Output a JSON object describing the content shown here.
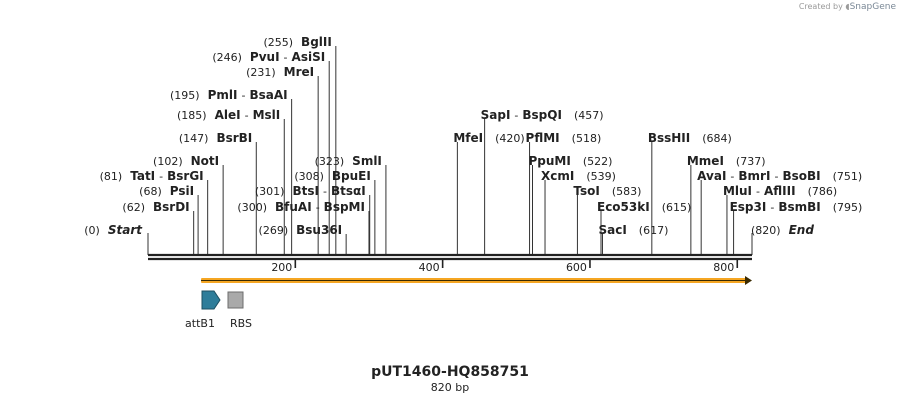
{
  "credit": {
    "prefix": "Created by",
    "brand": "SnapGene"
  },
  "sequence": {
    "name": "pUT1460-HQ858751",
    "length_label": "820 bp",
    "length": 820
  },
  "ruler": {
    "ticks": [
      200,
      400,
      600,
      800
    ]
  },
  "endpoints": [
    {
      "pos": 0,
      "pos_label": "(0)",
      "name": "Start"
    },
    {
      "pos": 820,
      "pos_label": "(820)",
      "name": "End"
    }
  ],
  "sites": [
    {
      "pos": 62,
      "pos_label": "(62)",
      "names": [
        "BsrDI"
      ]
    },
    {
      "pos": 68,
      "pos_label": "(68)",
      "names": [
        "PsiI"
      ]
    },
    {
      "pos": 81,
      "pos_label": "(81)",
      "names": [
        "TatI",
        "BsrGI"
      ]
    },
    {
      "pos": 102,
      "pos_label": "(102)",
      "names": [
        "NotI"
      ]
    },
    {
      "pos": 147,
      "pos_label": "(147)",
      "names": [
        "BsrBI"
      ]
    },
    {
      "pos": 185,
      "pos_label": "(185)",
      "names": [
        "AleI",
        "MslI"
      ]
    },
    {
      "pos": 195,
      "pos_label": "(195)",
      "names": [
        "PmlI",
        "BsaAI"
      ]
    },
    {
      "pos": 231,
      "pos_label": "(231)",
      "names": [
        "MreI"
      ]
    },
    {
      "pos": 246,
      "pos_label": "(246)",
      "names": [
        "PvuI",
        "AsiSI"
      ]
    },
    {
      "pos": 255,
      "pos_label": "(255)",
      "names": [
        "BglII"
      ]
    },
    {
      "pos": 269,
      "pos_label": "(269)",
      "names": [
        "Bsu36I"
      ]
    },
    {
      "pos": 300,
      "pos_label": "(300)",
      "names": [
        "BfuAI",
        "BspMI"
      ]
    },
    {
      "pos": 301,
      "pos_label": "(301)",
      "names": [
        "BtsI",
        "BtsαI"
      ]
    },
    {
      "pos": 308,
      "pos_label": "(308)",
      "names": [
        "BpuEI"
      ]
    },
    {
      "pos": 323,
      "pos_label": "(323)",
      "names": [
        "SmlI"
      ]
    },
    {
      "pos": 420,
      "pos_label": "(420)",
      "names": [
        "MfeI"
      ]
    },
    {
      "pos": 457,
      "pos_label": "(457)",
      "names": [
        "SapI",
        "BspQI"
      ]
    },
    {
      "pos": 518,
      "pos_label": "(518)",
      "names": [
        "PflMI"
      ]
    },
    {
      "pos": 522,
      "pos_label": "(522)",
      "names": [
        "PpuMI"
      ]
    },
    {
      "pos": 539,
      "pos_label": "(539)",
      "names": [
        "XcmI"
      ]
    },
    {
      "pos": 583,
      "pos_label": "(583)",
      "names": [
        "TsoI"
      ]
    },
    {
      "pos": 615,
      "pos_label": "(615)",
      "names": [
        "Eco53kI"
      ]
    },
    {
      "pos": 617,
      "pos_label": "(617)",
      "names": [
        "SacI"
      ]
    },
    {
      "pos": 684,
      "pos_label": "(684)",
      "names": [
        "BssHII"
      ]
    },
    {
      "pos": 737,
      "pos_label": "(737)",
      "names": [
        "MmeI"
      ]
    },
    {
      "pos": 751,
      "pos_label": "(751)",
      "names": [
        "AvaI",
        "BmrI",
        "BsoBI"
      ]
    },
    {
      "pos": 786,
      "pos_label": "(786)",
      "names": [
        "MluI",
        "AflIII"
      ]
    },
    {
      "pos": 795,
      "pos_label": "(795)",
      "names": [
        "Esp3I",
        "BsmBI"
      ]
    }
  ],
  "orf_arrow": {
    "start": 72,
    "end": 820,
    "color": "#f5a623"
  },
  "features": [
    {
      "name": "attB1",
      "color": "#2e7d9a",
      "shape": "arrow-right"
    },
    {
      "name": "RBS",
      "color": "#a9a9a9",
      "shape": "box"
    }
  ]
}
